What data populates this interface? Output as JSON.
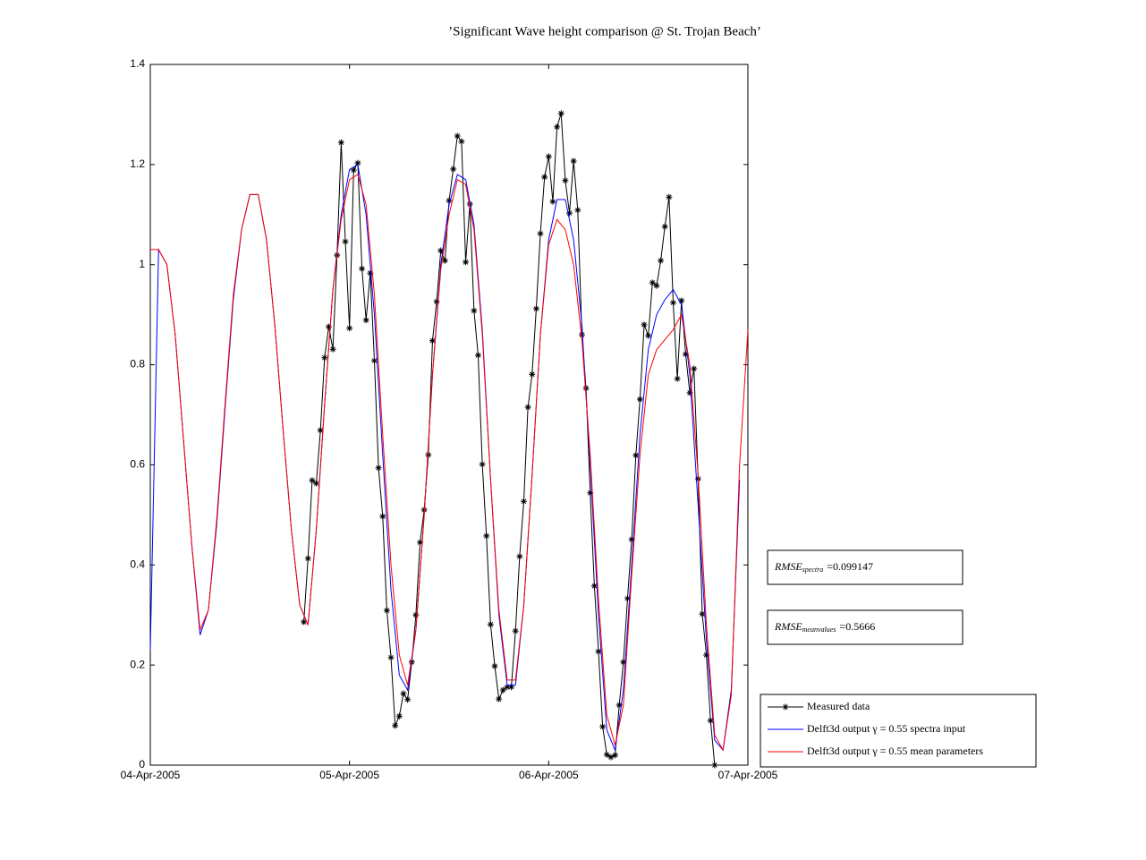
{
  "chart_data": {
    "type": "line",
    "title": "’Significant Wave height comparison @ St. Trojan Beach’",
    "xlim": [
      732406,
      732409
    ],
    "xticks": [
      {
        "value": 732406,
        "label": "04-Apr-2005"
      },
      {
        "value": 732407,
        "label": "05-Apr-2005"
      },
      {
        "value": 732408,
        "label": "06-Apr-2005"
      },
      {
        "value": 732409,
        "label": "07-Apr-2005"
      }
    ],
    "ylim": [
      0,
      1.4
    ],
    "yticks": [
      0,
      0.2,
      0.4,
      0.6,
      0.8,
      1,
      1.2,
      1.4
    ],
    "grid": false,
    "x": [
      732406.0,
      732406.0417,
      732406.0833,
      732406.125,
      732406.1667,
      732406.2083,
      732406.25,
      732406.2917,
      732406.3333,
      732406.375,
      732406.4167,
      732406.4583,
      732406.5,
      732406.5417,
      732406.5833,
      732406.625,
      732406.6667,
      732406.7083,
      732406.75,
      732406.7917,
      732406.8333,
      732406.875,
      732406.9167,
      732406.9583,
      732407.0,
      732407.0417,
      732407.0833,
      732407.125,
      732407.1667,
      732407.2083,
      732407.25,
      732407.2917,
      732407.3333,
      732407.375,
      732407.4167,
      732407.4583,
      732407.5,
      732407.5417,
      732407.5833,
      732407.625,
      732407.6667,
      732407.7083,
      732407.75,
      732407.7917,
      732407.8333,
      732407.875,
      732407.9167,
      732407.9583,
      732408.0,
      732408.0417,
      732408.0833,
      732408.125,
      732408.1667,
      732408.2083,
      732408.25,
      732408.2917,
      732408.3333,
      732408.375,
      732408.4167,
      732408.4583,
      732408.5,
      732408.5417,
      732408.5833,
      732408.625,
      732408.6667,
      732408.7083,
      732408.75,
      732408.7917,
      732408.8333,
      732408.875,
      732408.9167,
      732408.9583,
      732409.0
    ],
    "series": [
      {
        "name": "Measured data",
        "color": "#000000",
        "marker": "star",
        "x": [
          732406.7708,
          732406.7917,
          732406.8125,
          732406.8333,
          732406.8542,
          732406.875,
          732406.8958,
          732406.9167,
          732406.9375,
          732406.9583,
          732406.9792,
          732407.0,
          732407.0208,
          732407.0417,
          732407.0625,
          732407.0833,
          732407.1042,
          732407.125,
          732407.1458,
          732407.1667,
          732407.1875,
          732407.2083,
          732407.2292,
          732407.25,
          732407.2708,
          732407.2917,
          732407.3125,
          732407.3333,
          732407.3542,
          732407.375,
          732407.3958,
          732407.4167,
          732407.4375,
          732407.4583,
          732407.4792,
          732407.5,
          732407.5208,
          732407.5417,
          732407.5625,
          732407.5833,
          732407.6042,
          732407.625,
          732407.6458,
          732407.6667,
          732407.6875,
          732407.7083,
          732407.7292,
          732407.75,
          732407.7708,
          732407.7917,
          732407.8125,
          732407.8333,
          732407.8542,
          732407.875,
          732407.8958,
          732407.9167,
          732407.9375,
          732407.9583,
          732407.9792,
          732408.0,
          732408.0208,
          732408.0417,
          732408.0625,
          732408.0833,
          732408.1042,
          732408.125,
          732408.1458,
          732408.1667,
          732408.1875,
          732408.2083,
          732408.2292,
          732408.25,
          732408.2708,
          732408.2917,
          732408.3125,
          732408.3333,
          732408.3542,
          732408.375,
          732408.3958,
          732408.4167,
          732408.4375,
          732408.4583,
          732408.4792,
          732408.5,
          732408.5208,
          732408.5417,
          732408.5625,
          732408.5833,
          732408.6042,
          732408.625,
          732408.6458,
          732408.6667,
          732408.6875,
          732408.7083,
          732408.7292,
          732408.75,
          732408.7708,
          732408.7917,
          732408.8125,
          732408.8333
        ],
        "values": [
          0.286,
          0.413,
          0.569,
          0.563,
          0.669,
          0.814,
          0.876,
          0.831,
          1.019,
          1.244,
          1.046,
          0.873,
          1.189,
          1.203,
          0.992,
          0.889,
          0.983,
          0.808,
          0.594,
          0.497,
          0.309,
          0.215,
          0.079,
          0.098,
          0.143,
          0.131,
          0.206,
          0.3,
          0.445,
          0.51,
          0.62,
          0.848,
          0.926,
          1.028,
          1.008,
          1.128,
          1.191,
          1.257,
          1.246,
          1.005,
          1.121,
          0.908,
          0.819,
          0.601,
          0.458,
          0.281,
          0.198,
          0.132,
          0.15,
          0.156,
          0.156,
          0.268,
          0.417,
          0.527,
          0.715,
          0.781,
          0.912,
          1.062,
          1.175,
          1.216,
          1.126,
          1.275,
          1.302,
          1.168,
          1.103,
          1.207,
          1.109,
          0.86,
          0.753,
          0.544,
          0.358,
          0.227,
          0.077,
          0.021,
          0.016,
          0.02,
          0.12,
          0.206,
          0.333,
          0.451,
          0.619,
          0.731,
          0.88,
          0.858,
          0.964,
          0.958,
          1.008,
          1.076,
          1.135,
          0.924,
          0.772,
          0.928,
          0.821,
          0.744,
          0.792,
          0.572,
          0.302,
          0.22,
          0.089,
          0.0
        ]
      },
      {
        "name": "Delft3d output γ = 0.55 spectra input",
        "color": "#0000ff",
        "values": [
          0.23,
          1.03,
          1.0,
          0.86,
          0.65,
          0.44,
          0.26,
          0.31,
          0.48,
          0.71,
          0.93,
          1.07,
          1.14,
          1.14,
          1.05,
          0.88,
          0.67,
          0.47,
          0.32,
          0.28,
          0.47,
          0.72,
          0.95,
          1.1,
          1.19,
          1.2,
          1.1,
          0.9,
          0.62,
          0.35,
          0.18,
          0.15,
          0.27,
          0.5,
          0.78,
          1.0,
          1.12,
          1.18,
          1.17,
          1.08,
          0.87,
          0.57,
          0.3,
          0.16,
          0.16,
          0.32,
          0.58,
          0.86,
          1.05,
          1.13,
          1.13,
          1.05,
          0.88,
          0.6,
          0.3,
          0.07,
          0.03,
          0.15,
          0.4,
          0.66,
          0.83,
          0.9,
          0.93,
          0.95,
          0.92,
          0.78,
          0.52,
          0.25,
          0.05,
          0.03,
          0.15,
          0.57,
          null
        ]
      },
      {
        "name": "Delft3d output γ = 0.55 mean parameters",
        "color": "#ff0000",
        "values": [
          1.03,
          1.03,
          1.0,
          0.86,
          0.65,
          0.44,
          0.27,
          0.31,
          0.49,
          0.72,
          0.94,
          1.07,
          1.14,
          1.14,
          1.05,
          0.88,
          0.67,
          0.47,
          0.32,
          0.28,
          0.47,
          0.72,
          0.95,
          1.09,
          1.17,
          1.18,
          1.12,
          0.94,
          0.66,
          0.4,
          0.22,
          0.16,
          0.27,
          0.5,
          0.78,
          0.99,
          1.1,
          1.17,
          1.16,
          1.07,
          0.86,
          0.57,
          0.31,
          0.17,
          0.17,
          0.32,
          0.58,
          0.86,
          1.04,
          1.09,
          1.07,
          1.0,
          0.85,
          0.62,
          0.33,
          0.1,
          0.04,
          0.12,
          0.38,
          0.62,
          0.78,
          0.83,
          0.85,
          0.87,
          0.9,
          0.8,
          0.58,
          0.28,
          0.06,
          0.03,
          0.14,
          0.6,
          0.87
        ]
      }
    ],
    "legend": "lower right",
    "annotations": [
      {
        "text": "RMSE",
        "subscript": "spectra",
        "suffix": "=0.099147"
      },
      {
        "text": "RMSE",
        "subscript": "meanvalues",
        "suffix": "=0.5666"
      }
    ]
  }
}
